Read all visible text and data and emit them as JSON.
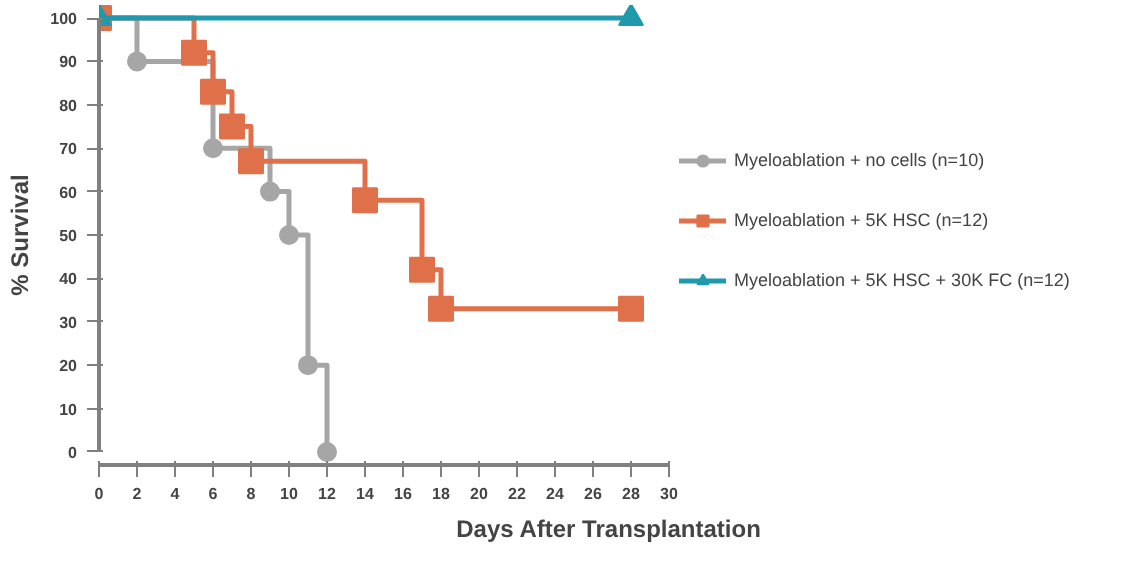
{
  "chart_data": {
    "type": "step",
    "xlabel": "Days After Transplantation",
    "ylabel": "% Survival",
    "xlim": [
      0,
      30
    ],
    "xticks": [
      0,
      2,
      4,
      6,
      8,
      10,
      12,
      14,
      16,
      18,
      20,
      22,
      24,
      26,
      28,
      30
    ],
    "ylim": [
      0,
      100
    ],
    "yticks": [
      0,
      10,
      20,
      30,
      40,
      50,
      60,
      70,
      80,
      90,
      100
    ],
    "grid": false,
    "legend": "right",
    "series": [
      {
        "name": "Myeloablation + no cells (n=10)",
        "color": "#a6a6a6",
        "marker": "circle",
        "x": [
          0,
          2,
          6,
          9,
          10,
          11,
          12
        ],
        "values": [
          100,
          90,
          70,
          60,
          50,
          20,
          0
        ]
      },
      {
        "name": "Myeloablation + 5K HSC (n=12)",
        "color": "#e0704a",
        "marker": "square",
        "x": [
          0,
          5,
          6,
          7,
          8,
          14,
          17,
          18,
          28
        ],
        "values": [
          100,
          92,
          83,
          75,
          67,
          58,
          42,
          33,
          33
        ]
      },
      {
        "name": "Myeloablation + 5K HSC + 30K FC (n=12)",
        "color": "#1f9aad",
        "marker": "triangle",
        "x": [
          0,
          28
        ],
        "values": [
          100,
          100
        ]
      }
    ]
  }
}
